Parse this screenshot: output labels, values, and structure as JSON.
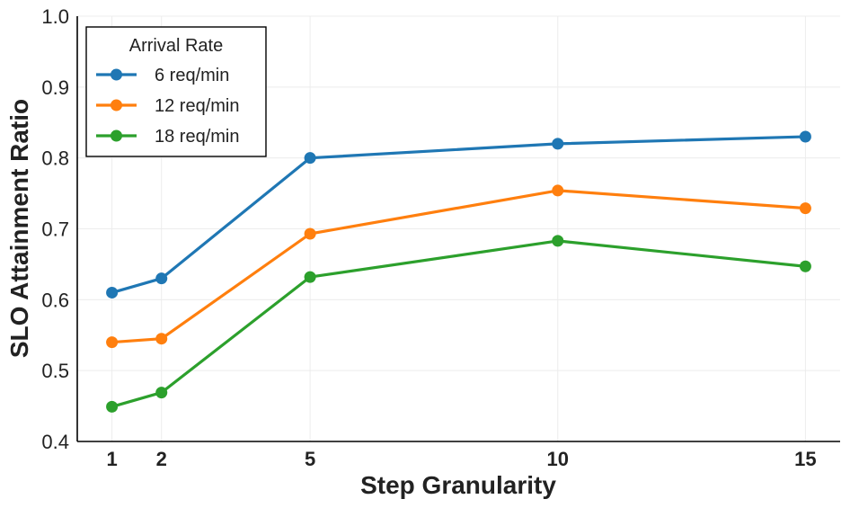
{
  "chart_data": {
    "type": "line",
    "xlabel": "Step Granularity",
    "ylabel": "SLO Attainment Ratio",
    "x": [
      1,
      2,
      5,
      10,
      15
    ],
    "xticks": [
      "1",
      "2",
      "5",
      "10",
      "15"
    ],
    "yticks": [
      "0.4",
      "0.5",
      "0.6",
      "0.7",
      "0.8",
      "0.9",
      "1.0"
    ],
    "ylim": [
      0.4,
      1.0
    ],
    "xlim": [
      0.3,
      15.7
    ],
    "grid": true,
    "legend": {
      "title": "Arrival Rate",
      "placement": "top-left"
    },
    "series": [
      {
        "name": "6 req/min",
        "color": "#1f77b4",
        "values": [
          0.61,
          0.63,
          0.8,
          0.82,
          0.83
        ]
      },
      {
        "name": "12 req/min",
        "color": "#ff7f0e",
        "values": [
          0.54,
          0.545,
          0.693,
          0.754,
          0.729
        ]
      },
      {
        "name": "18 req/min",
        "color": "#2ca02c",
        "values": [
          0.449,
          0.469,
          0.632,
          0.683,
          0.647
        ]
      }
    ]
  }
}
